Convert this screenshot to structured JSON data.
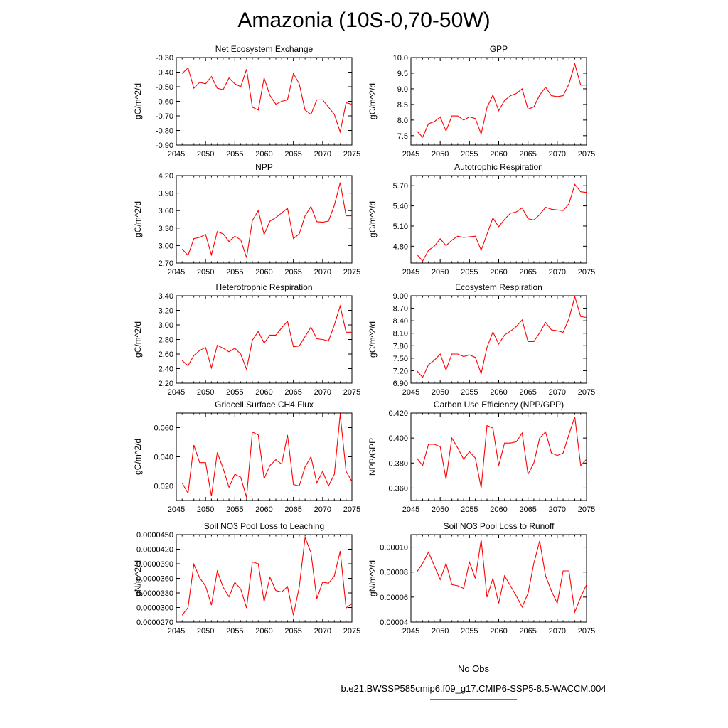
{
  "title": "Amazonia (10S-0,70-50W)",
  "colors": {
    "line": "#ff0000",
    "obs": "#7a7adc",
    "axis": "#000000"
  },
  "legend": {
    "obs_label": "No Obs",
    "case_label": "b.e21.BWSSP585cmip6.f09_g17.CMIP6-SSP5-8.5-WACCM.004"
  },
  "chart_data": [
    {
      "type": "line",
      "title": "Net Ecosystem Exchange",
      "ylabel": "gC/m^2/d",
      "xlim": [
        2045,
        2075
      ],
      "ylim": [
        -0.9,
        -0.3
      ],
      "yticks": [
        -0.9,
        -0.8,
        -0.7,
        -0.6,
        -0.5,
        -0.4,
        -0.3
      ],
      "ytick_labels": [
        "-0.90",
        "-0.80",
        "-0.70",
        "-0.60",
        "-0.50",
        "-0.40",
        "-0.30"
      ],
      "xticks": [
        2045,
        2050,
        2055,
        2060,
        2065,
        2070,
        2075
      ],
      "x": [
        2046,
        2047,
        2048,
        2049,
        2050,
        2051,
        2052,
        2053,
        2054,
        2055,
        2056,
        2057,
        2058,
        2059,
        2060,
        2061,
        2062,
        2063,
        2064,
        2065,
        2066,
        2067,
        2068,
        2069,
        2070,
        2071,
        2072,
        2073,
        2074,
        2075
      ],
      "values": [
        -0.41,
        -0.37,
        -0.51,
        -0.47,
        -0.48,
        -0.43,
        -0.51,
        -0.52,
        -0.44,
        -0.48,
        -0.5,
        -0.38,
        -0.64,
        -0.66,
        -0.44,
        -0.56,
        -0.62,
        -0.6,
        -0.59,
        -0.41,
        -0.48,
        -0.66,
        -0.69,
        -0.59,
        -0.59,
        -0.64,
        -0.69,
        -0.81,
        -0.61,
        -0.62
      ]
    },
    {
      "type": "line",
      "title": "GPP",
      "ylabel": "gC/m^2/d",
      "xlim": [
        2045,
        2075
      ],
      "ylim": [
        7.2,
        10.0
      ],
      "yticks": [
        7.5,
        8.0,
        8.5,
        9.0,
        9.5,
        10.0
      ],
      "ytick_labels": [
        "7.5",
        "8.0",
        "8.5",
        "9.0",
        "9.5",
        "10.0"
      ],
      "xticks": [
        2045,
        2050,
        2055,
        2060,
        2065,
        2070,
        2075
      ],
      "x": [
        2046,
        2047,
        2048,
        2049,
        2050,
        2051,
        2052,
        2053,
        2054,
        2055,
        2056,
        2057,
        2058,
        2059,
        2060,
        2061,
        2062,
        2063,
        2064,
        2065,
        2066,
        2067,
        2068,
        2069,
        2070,
        2071,
        2072,
        2073,
        2074,
        2075
      ],
      "values": [
        7.65,
        7.45,
        7.88,
        7.95,
        8.1,
        7.65,
        8.13,
        8.13,
        8.0,
        8.1,
        8.05,
        7.55,
        8.4,
        8.8,
        8.3,
        8.63,
        8.78,
        8.85,
        9.0,
        8.35,
        8.42,
        8.8,
        9.05,
        8.78,
        8.75,
        8.78,
        9.15,
        9.8,
        9.12,
        9.12
      ]
    },
    {
      "type": "line",
      "title": "NPP",
      "ylabel": "gC/m^2/d",
      "xlim": [
        2045,
        2075
      ],
      "ylim": [
        2.7,
        4.2
      ],
      "yticks": [
        2.7,
        3.0,
        3.3,
        3.6,
        3.9,
        4.2
      ],
      "ytick_labels": [
        "2.70",
        "3.00",
        "3.30",
        "3.60",
        "3.90",
        "4.20"
      ],
      "xticks": [
        2045,
        2050,
        2055,
        2060,
        2065,
        2070,
        2075
      ],
      "x": [
        2046,
        2047,
        2048,
        2049,
        2050,
        2051,
        2052,
        2053,
        2054,
        2055,
        2056,
        2057,
        2058,
        2059,
        2060,
        2061,
        2062,
        2063,
        2064,
        2065,
        2066,
        2067,
        2068,
        2069,
        2070,
        2071,
        2072,
        2073,
        2074,
        2075
      ],
      "values": [
        2.94,
        2.83,
        3.12,
        3.14,
        3.19,
        2.84,
        3.24,
        3.2,
        3.07,
        3.16,
        3.1,
        2.79,
        3.43,
        3.6,
        3.19,
        3.42,
        3.48,
        3.56,
        3.64,
        3.12,
        3.2,
        3.51,
        3.67,
        3.41,
        3.4,
        3.42,
        3.69,
        4.08,
        3.51,
        3.51
      ]
    },
    {
      "type": "line",
      "title": "Autotrophic Respiration",
      "ylabel": "gC/m^2/d",
      "xlim": [
        2045,
        2075
      ],
      "ylim": [
        4.55,
        5.85
      ],
      "yticks": [
        4.8,
        5.1,
        5.4,
        5.7
      ],
      "ytick_labels": [
        "4.80",
        "5.10",
        "5.40",
        "5.70"
      ],
      "xticks": [
        2045,
        2050,
        2055,
        2060,
        2065,
        2070,
        2075
      ],
      "x": [
        2046,
        2047,
        2048,
        2049,
        2050,
        2051,
        2052,
        2053,
        2054,
        2055,
        2056,
        2057,
        2058,
        2059,
        2060,
        2061,
        2062,
        2063,
        2064,
        2065,
        2066,
        2067,
        2068,
        2069,
        2070,
        2071,
        2072,
        2073,
        2074,
        2075
      ],
      "values": [
        4.68,
        4.58,
        4.74,
        4.8,
        4.91,
        4.81,
        4.89,
        4.95,
        4.93,
        4.94,
        4.95,
        4.74,
        4.98,
        5.22,
        5.09,
        5.2,
        5.29,
        5.31,
        5.37,
        5.21,
        5.19,
        5.27,
        5.38,
        5.35,
        5.34,
        5.33,
        5.43,
        5.72,
        5.61,
        5.6
      ]
    },
    {
      "type": "line",
      "title": "Heterotrophic Respiration",
      "ylabel": "gC/m^2/d",
      "xlim": [
        2045,
        2075
      ],
      "ylim": [
        2.2,
        3.4
      ],
      "yticks": [
        2.2,
        2.4,
        2.6,
        2.8,
        3.0,
        3.2,
        3.4
      ],
      "ytick_labels": [
        "2.20",
        "2.40",
        "2.60",
        "2.80",
        "3.00",
        "3.20",
        "3.40"
      ],
      "xticks": [
        2045,
        2050,
        2055,
        2060,
        2065,
        2070,
        2075
      ],
      "x": [
        2046,
        2047,
        2048,
        2049,
        2050,
        2051,
        2052,
        2053,
        2054,
        2055,
        2056,
        2057,
        2058,
        2059,
        2060,
        2061,
        2062,
        2063,
        2064,
        2065,
        2066,
        2067,
        2068,
        2069,
        2070,
        2071,
        2072,
        2073,
        2074,
        2075
      ],
      "values": [
        2.51,
        2.44,
        2.58,
        2.65,
        2.69,
        2.41,
        2.72,
        2.68,
        2.63,
        2.68,
        2.6,
        2.39,
        2.79,
        2.91,
        2.75,
        2.86,
        2.86,
        2.96,
        3.05,
        2.7,
        2.71,
        2.84,
        2.97,
        2.81,
        2.8,
        2.78,
        3.0,
        3.26,
        2.9,
        2.9
      ]
    },
    {
      "type": "line",
      "title": "Ecosystem Respiration",
      "ylabel": "gC/m^2/d",
      "xlim": [
        2045,
        2075
      ],
      "ylim": [
        6.9,
        9.0
      ],
      "yticks": [
        6.9,
        7.2,
        7.5,
        7.8,
        8.1,
        8.4,
        8.7,
        9.0
      ],
      "ytick_labels": [
        "6.90",
        "7.20",
        "7.50",
        "7.80",
        "8.10",
        "8.40",
        "8.70",
        "9.00"
      ],
      "xticks": [
        2045,
        2050,
        2055,
        2060,
        2065,
        2070,
        2075
      ],
      "x": [
        2046,
        2047,
        2048,
        2049,
        2050,
        2051,
        2052,
        2053,
        2054,
        2055,
        2056,
        2057,
        2058,
        2059,
        2060,
        2061,
        2062,
        2063,
        2064,
        2065,
        2066,
        2067,
        2068,
        2069,
        2070,
        2071,
        2072,
        2073,
        2074,
        2075
      ],
      "values": [
        7.2,
        7.04,
        7.34,
        7.45,
        7.6,
        7.22,
        7.6,
        7.6,
        7.54,
        7.58,
        7.52,
        7.13,
        7.76,
        8.13,
        7.84,
        8.06,
        8.15,
        8.26,
        8.42,
        7.9,
        7.9,
        8.11,
        8.36,
        8.18,
        8.16,
        8.12,
        8.45,
        8.98,
        8.5,
        8.48
      ]
    },
    {
      "type": "line",
      "title": "Gridcell Surface CH4 Flux",
      "ylabel": "gC/m^2/d",
      "xlim": [
        2045,
        2075
      ],
      "ylim": [
        0.01,
        0.07
      ],
      "yticks": [
        0.02,
        0.04,
        0.06
      ],
      "ytick_labels": [
        "0.020",
        "0.040",
        "0.060"
      ],
      "xticks": [
        2045,
        2050,
        2055,
        2060,
        2065,
        2070,
        2075
      ],
      "x": [
        2046,
        2047,
        2048,
        2049,
        2050,
        2051,
        2052,
        2053,
        2054,
        2055,
        2056,
        2057,
        2058,
        2059,
        2060,
        2061,
        2062,
        2063,
        2064,
        2065,
        2066,
        2067,
        2068,
        2069,
        2070,
        2071,
        2072,
        2073,
        2074,
        2075
      ],
      "values": [
        0.022,
        0.015,
        0.048,
        0.036,
        0.036,
        0.013,
        0.043,
        0.032,
        0.019,
        0.028,
        0.026,
        0.012,
        0.057,
        0.055,
        0.025,
        0.034,
        0.038,
        0.035,
        0.055,
        0.021,
        0.02,
        0.033,
        0.04,
        0.022,
        0.03,
        0.02,
        0.028,
        0.069,
        0.03,
        0.023
      ]
    },
    {
      "type": "line",
      "title": "Carbon Use Efficiency (NPP/GPP)",
      "ylabel": "NPP/GPP",
      "xlim": [
        2045,
        2075
      ],
      "ylim": [
        0.35,
        0.42
      ],
      "yticks": [
        0.36,
        0.38,
        0.4,
        0.42
      ],
      "ytick_labels": [
        "0.360",
        "0.380",
        "0.400",
        "0.420"
      ],
      "xticks": [
        2045,
        2050,
        2055,
        2060,
        2065,
        2070,
        2075
      ],
      "x": [
        2046,
        2047,
        2048,
        2049,
        2050,
        2051,
        2052,
        2053,
        2054,
        2055,
        2056,
        2057,
        2058,
        2059,
        2060,
        2061,
        2062,
        2063,
        2064,
        2065,
        2066,
        2067,
        2068,
        2069,
        2070,
        2071,
        2072,
        2073,
        2074,
        2075
      ],
      "values": [
        0.384,
        0.378,
        0.395,
        0.395,
        0.393,
        0.367,
        0.4,
        0.392,
        0.383,
        0.389,
        0.384,
        0.36,
        0.41,
        0.408,
        0.378,
        0.396,
        0.396,
        0.397,
        0.404,
        0.371,
        0.38,
        0.4,
        0.405,
        0.388,
        0.386,
        0.388,
        0.403,
        0.417,
        0.378,
        0.383
      ]
    },
    {
      "type": "line",
      "title": "Soil NO3 Pool Loss to Leaching",
      "ylabel": "gN/m^2/d",
      "xlim": [
        2045,
        2075
      ],
      "ylim": [
        2.7e-05,
        4.5e-05
      ],
      "yticks": [
        2.7e-05,
        3e-05,
        3.3e-05,
        3.6e-05,
        3.9e-05,
        4.2e-05,
        4.5e-05
      ],
      "ytick_labels": [
        "0.0000270",
        "0.0000300",
        "0.0000330",
        "0.0000360",
        "0.0000390",
        "0.0000420",
        "0.0000450"
      ],
      "xticks": [
        2045,
        2050,
        2055,
        2060,
        2065,
        2070,
        2075
      ],
      "x": [
        2046,
        2047,
        2048,
        2049,
        2050,
        2051,
        2052,
        2053,
        2054,
        2055,
        2056,
        2057,
        2058,
        2059,
        2060,
        2061,
        2062,
        2063,
        2064,
        2065,
        2066,
        2067,
        2068,
        2069,
        2070,
        2071,
        2072,
        2073,
        2074,
        2075
      ],
      "values": [
        2.84e-05,
        3e-05,
        3.89e-05,
        3.61e-05,
        3.44e-05,
        3.05e-05,
        3.75e-05,
        3.42e-05,
        3.22e-05,
        3.52e-05,
        3.38e-05,
        2.99e-05,
        3.94e-05,
        3.9e-05,
        3.12e-05,
        3.62e-05,
        3.35e-05,
        3.32e-05,
        3.43e-05,
        2.84e-05,
        3.42e-05,
        4.44e-05,
        4.13e-05,
        3.18e-05,
        3.52e-05,
        3.5e-05,
        3.65e-05,
        4.16e-05,
        2.99e-05,
        3.08e-05
      ]
    },
    {
      "type": "line",
      "title": "Soil NO3 Pool Loss to Runoff",
      "ylabel": "gN/m^2/d",
      "xlim": [
        2045,
        2075
      ],
      "ylim": [
        4e-05,
        0.00011
      ],
      "yticks": [
        4e-05,
        6e-05,
        8e-05,
        0.0001
      ],
      "ytick_labels": [
        "0.00004",
        "0.00006",
        "0.00008",
        "0.00010"
      ],
      "xticks": [
        2045,
        2050,
        2055,
        2060,
        2065,
        2070,
        2075
      ],
      "x": [
        2046,
        2047,
        2048,
        2049,
        2050,
        2051,
        2052,
        2053,
        2054,
        2055,
        2056,
        2057,
        2058,
        2059,
        2060,
        2061,
        2062,
        2063,
        2064,
        2065,
        2066,
        2067,
        2068,
        2069,
        2070,
        2071,
        2072,
        2073,
        2074,
        2075
      ],
      "values": [
        8e-05,
        8.7e-05,
        9.6e-05,
        8.5e-05,
        7.4e-05,
        8.7e-05,
        7e-05,
        6.9e-05,
        6.7e-05,
        8.8e-05,
        7.5e-05,
        0.000106,
        6e-05,
        7.5e-05,
        5.5e-05,
        7.7e-05,
        6.9e-05,
        6.1e-05,
        5.2e-05,
        6.3e-05,
        8.7e-05,
        0.000105,
        7.7e-05,
        6.5e-05,
        5.5e-05,
        8.1e-05,
        8.1e-05,
        4.8e-05,
        6e-05,
        7e-05
      ]
    }
  ]
}
